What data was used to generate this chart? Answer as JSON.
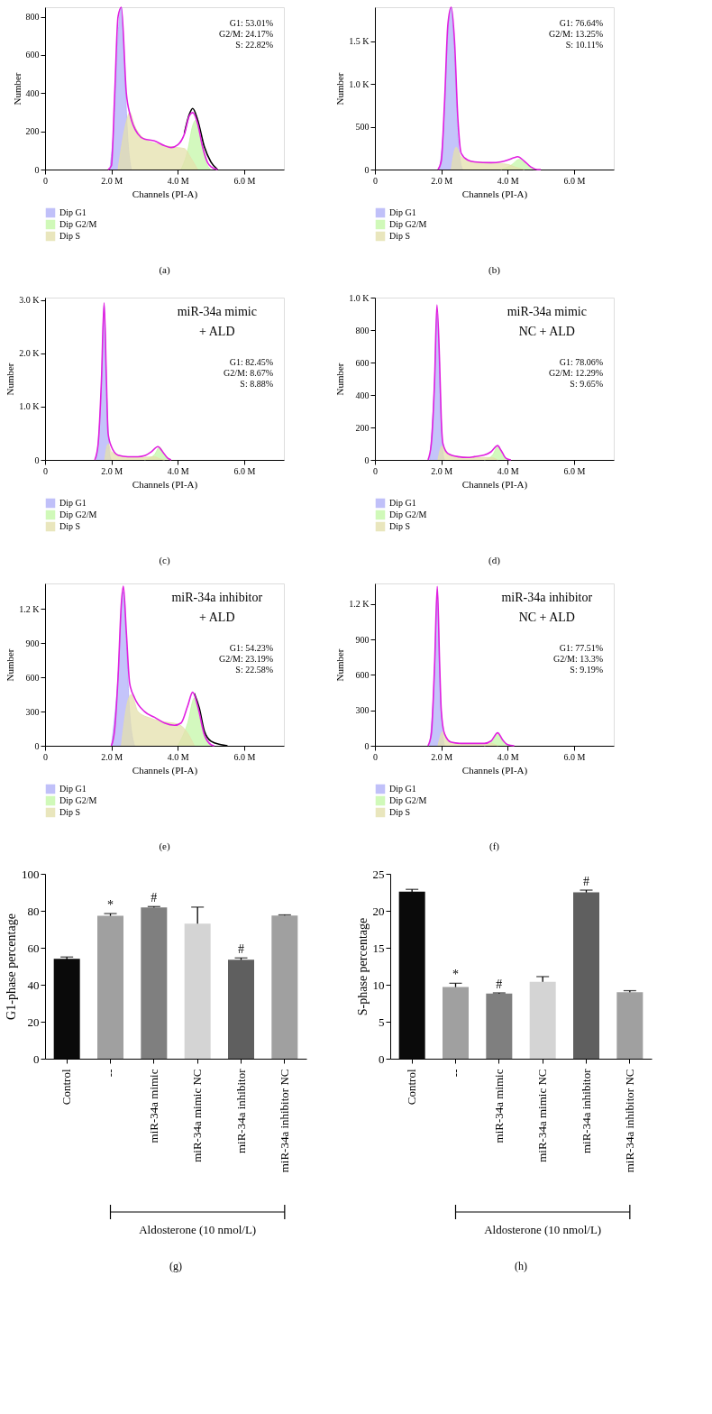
{
  "chart_data": [
    {
      "type": "area",
      "xlabel": "Channels (PI-A)",
      "ylabel": "Number",
      "legend": "bottom",
      "xlim": [
        0,
        7.2
      ],
      "ylim": [
        0,
        850
      ],
      "xticks": [
        {
          "value": 0,
          "label": "0"
        },
        {
          "value": 2,
          "label": "2.0 M"
        },
        {
          "value": 4,
          "label": "4.0 M"
        },
        {
          "value": 6,
          "label": "6.0 M"
        }
      ],
      "yticks": [
        0,
        200,
        400,
        600,
        800
      ],
      "annotations": [
        "G1: 53.01%",
        "G2/M: 24.17%",
        "S: 22.82%",
        "(a)"
      ],
      "series": [
        {
          "name": "Dip G1",
          "type": "area",
          "color": "#b0b0f8",
          "x": [
            1.95,
            2.1,
            2.2,
            2.3,
            2.4,
            2.5,
            2.6
          ],
          "values": [
            0,
            300,
            700,
            850,
            500,
            150,
            0
          ]
        },
        {
          "name": "Dip G2/M",
          "type": "area",
          "color": "#c4f7a8",
          "x": [
            4.1,
            4.3,
            4.45,
            4.55,
            4.7,
            4.85,
            5.0
          ],
          "values": [
            0,
            100,
            230,
            260,
            150,
            40,
            0
          ]
        },
        {
          "name": "Dip S",
          "type": "area",
          "color": "#e4e0ac",
          "x": [
            2.2,
            2.45,
            2.55,
            2.7,
            3.0,
            3.5,
            4.0,
            4.2,
            4.4,
            4.6
          ],
          "values": [
            0,
            250,
            300,
            230,
            160,
            130,
            115,
            110,
            60,
            0
          ]
        },
        {
          "type": "line",
          "color": "#000000",
          "x": [
            4.2,
            4.35,
            4.45,
            4.6,
            4.8,
            5.0,
            5.2
          ],
          "values": [
            190,
            290,
            320,
            260,
            120,
            40,
            0
          ]
        },
        {
          "type": "line",
          "color": "#e020e0",
          "x": [
            1.9,
            2.0,
            2.1,
            2.2,
            2.3,
            2.45,
            2.57,
            2.8,
            3.0,
            3.3,
            3.6,
            3.8,
            4.0,
            4.2,
            4.35,
            4.45,
            4.6,
            4.75,
            4.9,
            5.0,
            5.2
          ],
          "values": [
            0,
            20,
            400,
            800,
            850,
            400,
            282,
            186,
            159,
            150,
            125,
            115,
            129,
            186,
            282,
            298,
            241,
            118,
            36,
            15,
            0
          ]
        }
      ]
    },
    {
      "type": "area",
      "xlabel": "Channels (PI-A)",
      "ylabel": "Number",
      "legend": "bottom",
      "xlim": [
        0,
        7.2
      ],
      "ylim": [
        0,
        1900
      ],
      "xticks": [
        {
          "value": 0,
          "label": "0"
        },
        {
          "value": 2,
          "label": "2.0 M"
        },
        {
          "value": 4,
          "label": "4.0 M"
        },
        {
          "value": 6,
          "label": "6.0 M"
        }
      ],
      "yticks": [
        0,
        500,
        {
          "value": 1000,
          "label": "1.0 K"
        },
        {
          "value": 1500,
          "label": "1.5 K"
        }
      ],
      "annotations": [
        "G1: 76.64%",
        "G2/M: 13.25%",
        "S: 10.11%",
        "(b)"
      ],
      "series": [
        {
          "name": "Dip G1",
          "type": "area",
          "color": "#b0b0f8",
          "x": [
            1.95,
            2.1,
            2.2,
            2.3,
            2.4,
            2.5,
            2.6,
            2.65
          ],
          "values": [
            0,
            700,
            1600,
            1900,
            1300,
            400,
            50,
            0
          ]
        },
        {
          "name": "Dip G2/M",
          "type": "area",
          "color": "#c4f7a8",
          "x": [
            3.8,
            4.1,
            4.35,
            4.6,
            4.8
          ],
          "values": [
            0,
            50,
            120,
            50,
            0
          ]
        },
        {
          "name": "Dip S",
          "type": "area",
          "color": "#e4e0ac",
          "x": [
            2.3,
            2.45,
            2.6,
            3.0,
            3.5,
            4.0,
            4.3,
            4.5
          ],
          "values": [
            0,
            260,
            150,
            90,
            80,
            60,
            20,
            0
          ]
        },
        {
          "type": "line",
          "color": "#e020e0",
          "x": [
            1.9,
            2.0,
            2.1,
            2.2,
            2.3,
            2.4,
            2.5,
            2.6,
            2.8,
            3.0,
            3.5,
            3.8,
            4.0,
            4.2,
            4.3,
            4.5,
            4.7,
            4.9,
            5.0
          ],
          "values": [
            0,
            100,
            800,
            1700,
            1900,
            1500,
            600,
            190,
            110,
            90,
            80,
            90,
            110,
            140,
            150,
            100,
            30,
            0,
            0
          ]
        }
      ]
    },
    {
      "type": "area",
      "title": "miR-34a mimic\n+ ALD",
      "xlabel": "Channels (PI-A)",
      "ylabel": "Number",
      "legend": "bottom",
      "xlim": [
        0,
        7.2
      ],
      "ylim": [
        0,
        3050
      ],
      "xticks": [
        {
          "value": 0,
          "label": "0"
        },
        {
          "value": 2,
          "label": "2.0 M"
        },
        {
          "value": 4,
          "label": "4.0 M"
        },
        {
          "value": 6,
          "label": "6.0 M"
        }
      ],
      "yticks": [
        0,
        {
          "value": 1000,
          "label": "1.0 K"
        },
        {
          "value": 2000,
          "label": "2.0 K"
        },
        {
          "value": 3000,
          "label": "3.0 K"
        }
      ],
      "annotations": [
        "G1: 82.45%",
        "G2/M: 8.67%",
        "S: 8.88%",
        "(c)"
      ],
      "series": [
        {
          "name": "Dip G1",
          "type": "area",
          "color": "#b0b0f8",
          "x": [
            1.55,
            1.7,
            1.78,
            1.86,
            1.95,
            2.0
          ],
          "values": [
            0,
            1400,
            2900,
            1200,
            100,
            0
          ]
        },
        {
          "name": "Dip G2/M",
          "type": "area",
          "color": "#c4f7a8",
          "x": [
            3.0,
            3.3,
            3.45,
            3.6,
            3.8
          ],
          "values": [
            0,
            100,
            240,
            100,
            0
          ]
        },
        {
          "name": "Dip S",
          "type": "area",
          "color": "#e4e0ac",
          "x": [
            1.8,
            1.9,
            2.0,
            2.5,
            3.0,
            3.3,
            3.5,
            3.6
          ],
          "values": [
            0,
            300,
            150,
            50,
            50,
            60,
            10,
            0
          ]
        },
        {
          "type": "line",
          "color": "#e020e0",
          "x": [
            1.5,
            1.6,
            1.7,
            1.78,
            1.85,
            1.9,
            2.0,
            2.2,
            2.5,
            2.8,
            3.0,
            3.2,
            3.4,
            3.55,
            3.7,
            3.8
          ],
          "values": [
            0,
            300,
            1500,
            2950,
            1500,
            500,
            250,
            90,
            60,
            60,
            80,
            150,
            250,
            150,
            30,
            0
          ]
        }
      ]
    },
    {
      "type": "area",
      "title": "miR-34a mimic\nNC + ALD",
      "xlabel": "Channels (PI-A)",
      "ylabel": "Number",
      "legend": "bottom",
      "xlim": [
        0,
        7.2
      ],
      "ylim": [
        0,
        1000
      ],
      "xticks": [
        {
          "value": 0,
          "label": "0"
        },
        {
          "value": 2,
          "label": "2.0 M"
        },
        {
          "value": 4,
          "label": "4.0 M"
        },
        {
          "value": 6,
          "label": "6.0 M"
        }
      ],
      "yticks": [
        0,
        200,
        400,
        600,
        800,
        {
          "value": 1000,
          "label": "1.0 K"
        }
      ],
      "annotations": [
        "G1: 78.06%",
        "G2/M: 12.29%",
        "S: 9.65%",
        "(d)"
      ],
      "series": [
        {
          "name": "Dip G1",
          "type": "area",
          "color": "#b0b0f8",
          "x": [
            1.65,
            1.8,
            1.87,
            1.95,
            2.05,
            2.1
          ],
          "values": [
            0,
            500,
            900,
            500,
            50,
            0
          ]
        },
        {
          "name": "Dip G2/M",
          "type": "area",
          "color": "#c4f7a8",
          "x": [
            3.3,
            3.55,
            3.7,
            3.85,
            4.0
          ],
          "values": [
            0,
            30,
            80,
            30,
            0
          ]
        },
        {
          "name": "Dip S",
          "type": "area",
          "color": "#e4e0ac",
          "x": [
            1.9,
            2.02,
            2.15,
            2.5,
            3.0,
            3.5,
            3.7
          ],
          "values": [
            0,
            85,
            40,
            20,
            15,
            15,
            0
          ]
        },
        {
          "type": "line",
          "color": "#e020e0",
          "x": [
            1.6,
            1.7,
            1.8,
            1.87,
            1.95,
            2.0,
            2.05,
            2.2,
            2.5,
            2.8,
            3.0,
            3.3,
            3.5,
            3.7,
            3.8,
            3.95,
            4.1
          ],
          "values": [
            0,
            100,
            500,
            955,
            600,
            250,
            100,
            40,
            20,
            15,
            20,
            30,
            50,
            88,
            60,
            10,
            0
          ]
        }
      ]
    },
    {
      "type": "area",
      "title": "miR-34a inhibitor\n+ ALD",
      "xlabel": "Channels (PI-A)",
      "ylabel": "Number",
      "legend": "bottom",
      "xlim": [
        0,
        7.2
      ],
      "ylim": [
        0,
        1425
      ],
      "xticks": [
        {
          "value": 0,
          "label": "0"
        },
        {
          "value": 2,
          "label": "2.0 M"
        },
        {
          "value": 4,
          "label": "4.0 M"
        },
        {
          "value": 6,
          "label": "6.0 M"
        }
      ],
      "yticks": [
        0,
        300,
        600,
        900,
        {
          "value": 1200,
          "label": "1.2 K"
        }
      ],
      "annotations": [
        "G1: 54.23%",
        "G2/M: 23.19%",
        "S: 22.58%",
        "(e)"
      ],
      "series": [
        {
          "name": "Dip G1",
          "type": "area",
          "color": "#b0b0f8",
          "x": [
            2.0,
            2.2,
            2.35,
            2.45,
            2.55,
            2.7
          ],
          "values": [
            0,
            600,
            1350,
            900,
            300,
            0
          ]
        },
        {
          "name": "Dip G2/M",
          "type": "area",
          "color": "#c4f7a8",
          "x": [
            4.0,
            4.3,
            4.5,
            4.65,
            4.9,
            5.0
          ],
          "values": [
            0,
            200,
            420,
            250,
            30,
            0
          ]
        },
        {
          "name": "Dip S",
          "type": "area",
          "color": "#e4e0ac",
          "x": [
            2.3,
            2.5,
            2.6,
            2.8,
            3.2,
            3.6,
            4.0,
            4.2,
            4.4,
            4.5
          ],
          "values": [
            0,
            400,
            450,
            300,
            240,
            210,
            190,
            150,
            60,
            0
          ]
        },
        {
          "type": "line",
          "color": "#000000",
          "x": [
            4.5,
            4.65,
            4.8,
            5.0,
            5.3,
            5.5
          ],
          "values": [
            460,
            330,
            130,
            40,
            10,
            0
          ]
        },
        {
          "type": "line",
          "color": "#e020e0",
          "x": [
            2.0,
            2.1,
            2.2,
            2.3,
            2.36,
            2.45,
            2.55,
            2.7,
            3.0,
            3.3,
            3.6,
            3.9,
            4.1,
            4.3,
            4.45,
            4.6,
            4.8,
            5.0,
            5.1
          ],
          "values": [
            0,
            150,
            600,
            1250,
            1400,
            1000,
            550,
            420,
            300,
            250,
            200,
            180,
            200,
            350,
            470,
            350,
            100,
            10,
            0
          ]
        }
      ]
    },
    {
      "type": "area",
      "title": "miR-34a inhibitor\nNC + ALD",
      "xlabel": "Channels (PI-A)",
      "ylabel": "Number",
      "legend": "bottom",
      "xlim": [
        0,
        7.2
      ],
      "ylim": [
        0,
        1375
      ],
      "xticks": [
        {
          "value": 0,
          "label": "0"
        },
        {
          "value": 2,
          "label": "2.0 M"
        },
        {
          "value": 4,
          "label": "4.0 M"
        },
        {
          "value": 6,
          "label": "6.0 M"
        }
      ],
      "yticks": [
        0,
        300,
        600,
        900,
        {
          "value": 1200,
          "label": "1.2 K"
        }
      ],
      "annotations": [
        "G1: 77.51%",
        "G2/M: 13.3%",
        "S: 9.19%",
        "(f)"
      ],
      "series": [
        {
          "name": "Dip G1",
          "type": "area",
          "color": "#b0b0f8",
          "x": [
            1.65,
            1.8,
            1.88,
            1.95,
            2.05,
            2.1
          ],
          "values": [
            0,
            650,
            1300,
            600,
            80,
            0
          ]
        },
        {
          "name": "Dip G2/M",
          "type": "area",
          "color": "#c4f7a8",
          "x": [
            3.3,
            3.55,
            3.7,
            3.85,
            4.0
          ],
          "values": [
            0,
            40,
            100,
            40,
            0
          ]
        },
        {
          "name": "Dip S",
          "type": "area",
          "color": "#e4e0ac",
          "x": [
            1.9,
            2.05,
            2.2,
            2.6,
            3.0,
            3.5,
            3.7
          ],
          "values": [
            0,
            120,
            40,
            20,
            20,
            20,
            0
          ]
        },
        {
          "type": "line",
          "color": "#e020e0",
          "x": [
            1.6,
            1.7,
            1.8,
            1.88,
            1.95,
            2.0,
            2.1,
            2.3,
            2.6,
            3.0,
            3.3,
            3.5,
            3.7,
            3.85,
            4.0,
            4.2
          ],
          "values": [
            0,
            100,
            700,
            1350,
            700,
            300,
            100,
            30,
            20,
            20,
            20,
            40,
            110,
            50,
            10,
            0
          ]
        }
      ]
    },
    {
      "type": "bar",
      "ylabel": "G1-phase percentage",
      "ylim": [
        0,
        100
      ],
      "yticks": [
        0,
        20,
        40,
        60,
        80,
        100
      ],
      "categories": [
        "Control",
        "--",
        "miR-34a mimic",
        "miR-34a mimic NC",
        "miR-34a inhibitor",
        "miR-34a inhibitor NC"
      ],
      "values": [
        54,
        77.3,
        81.8,
        73,
        53.5,
        77.5
      ],
      "errors": [
        1,
        1.2,
        0.5,
        9,
        1,
        0.3
      ],
      "colors": [
        "#0a0a0a",
        "#a0a0a0",
        "#7f7f7f",
        "#d4d4d4",
        "#5f5f5f",
        "#a0a0a0"
      ],
      "annotations": [
        {
          "text": "*",
          "x": "--",
          "y": 78.5
        },
        {
          "text": "#",
          "x": "miR-34a mimic",
          "y": 82.3
        },
        {
          "text": "#",
          "x": "miR-34a inhibitor",
          "y": 54.5
        },
        "Aldosterone (10 nmol/L)",
        "(g)"
      ]
    },
    {
      "type": "bar",
      "ylabel": "S-phase percentage",
      "ylim": [
        0,
        25
      ],
      "yticks": [
        0,
        5,
        10,
        15,
        20,
        25
      ],
      "categories": [
        "Control",
        "--",
        "miR-34a mimic",
        "miR-34a mimic NC",
        "miR-34a inhibitor",
        "miR-34a inhibitor NC"
      ],
      "values": [
        22.6,
        9.7,
        8.8,
        10.4,
        22.5,
        9.0
      ],
      "errors": [
        0.3,
        0.5,
        0.1,
        0.7,
        0.3,
        0.2
      ],
      "colors": [
        "#0a0a0a",
        "#a0a0a0",
        "#7f7f7f",
        "#d4d4d4",
        "#5f5f5f",
        "#a0a0a0"
      ],
      "annotations": [
        {
          "text": "*",
          "x": "--",
          "y": 10.2
        },
        {
          "text": "#",
          "x": "miR-34a mimic",
          "y": 8.85
        },
        {
          "text": "#",
          "x": "miR-34a inhibitor",
          "y": 22.8
        },
        "Aldosterone (10 nmol/L)",
        "(h)"
      ]
    }
  ]
}
